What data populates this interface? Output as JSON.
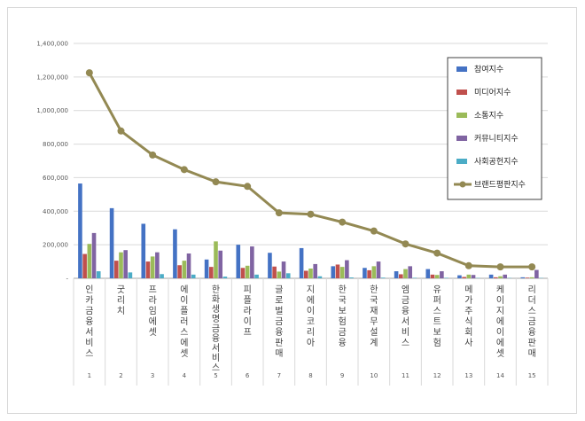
{
  "chart_data": {
    "type": "bar",
    "title": "",
    "xlabel": "",
    "ylabel": "",
    "ylim": [
      0,
      1400000
    ],
    "yticks": [
      0,
      200000,
      400000,
      600000,
      800000,
      1000000,
      1200000,
      1400000
    ],
    "ytick_labels": [
      "-",
      "200,000",
      "400,000",
      "600,000",
      "800,000",
      "1,000,000",
      "1,200,000",
      "1,400,000"
    ],
    "grid": true,
    "legend_position": "top-right",
    "categories": [
      "인카금융서비스",
      "굿리치",
      "프라임에셋",
      "에이플러스에셋",
      "한화생명금융서비스",
      "피플라이프",
      "글로벌금융판매",
      "지에이코리아",
      "한국보험금융",
      "한국재무설계",
      "엠금융서비스",
      "유퍼스트보험",
      "메가주식회사",
      "케이지에이에셋",
      "리더스금융판매"
    ],
    "ranks": [
      "1",
      "2",
      "3",
      "4",
      "5",
      "6",
      "7",
      "8",
      "9",
      "10",
      "11",
      "12",
      "13",
      "14",
      "15"
    ],
    "series": [
      {
        "name": "참여지수",
        "kind": "bar",
        "color": "#4472c4",
        "values": [
          565000,
          418000,
          325000,
          292000,
          112000,
          200000,
          152000,
          180000,
          72000,
          62000,
          42000,
          55000,
          18000,
          22000,
          6000
        ]
      },
      {
        "name": "미디어지수",
        "kind": "bar",
        "color": "#c0504d",
        "values": [
          145000,
          105000,
          100000,
          78000,
          68000,
          62000,
          70000,
          45000,
          82000,
          48000,
          24000,
          22000,
          8000,
          6000,
          4000
        ]
      },
      {
        "name": "소통지수",
        "kind": "bar",
        "color": "#9bbb59",
        "values": [
          205000,
          155000,
          130000,
          105000,
          220000,
          75000,
          40000,
          58000,
          68000,
          72000,
          55000,
          20000,
          22000,
          12000,
          6000
        ]
      },
      {
        "name": "커뮤니티지수",
        "kind": "bar",
        "color": "#8064a2",
        "values": [
          270000,
          168000,
          155000,
          148000,
          165000,
          190000,
          100000,
          85000,
          108000,
          100000,
          72000,
          42000,
          20000,
          22000,
          50000
        ]
      },
      {
        "name": "사회공헌지수",
        "kind": "bar",
        "color": "#4bacc6",
        "values": [
          42000,
          35000,
          25000,
          22000,
          10000,
          22000,
          30000,
          12000,
          5000,
          4000,
          3000,
          3000,
          2000,
          2000,
          2000
        ]
      },
      {
        "name": "브랜드평판지수",
        "kind": "line",
        "color": "#938953",
        "values": [
          1225000,
          878000,
          735000,
          648000,
          575000,
          548000,
          390000,
          382000,
          335000,
          282000,
          205000,
          150000,
          75000,
          68000,
          68000
        ]
      }
    ]
  }
}
